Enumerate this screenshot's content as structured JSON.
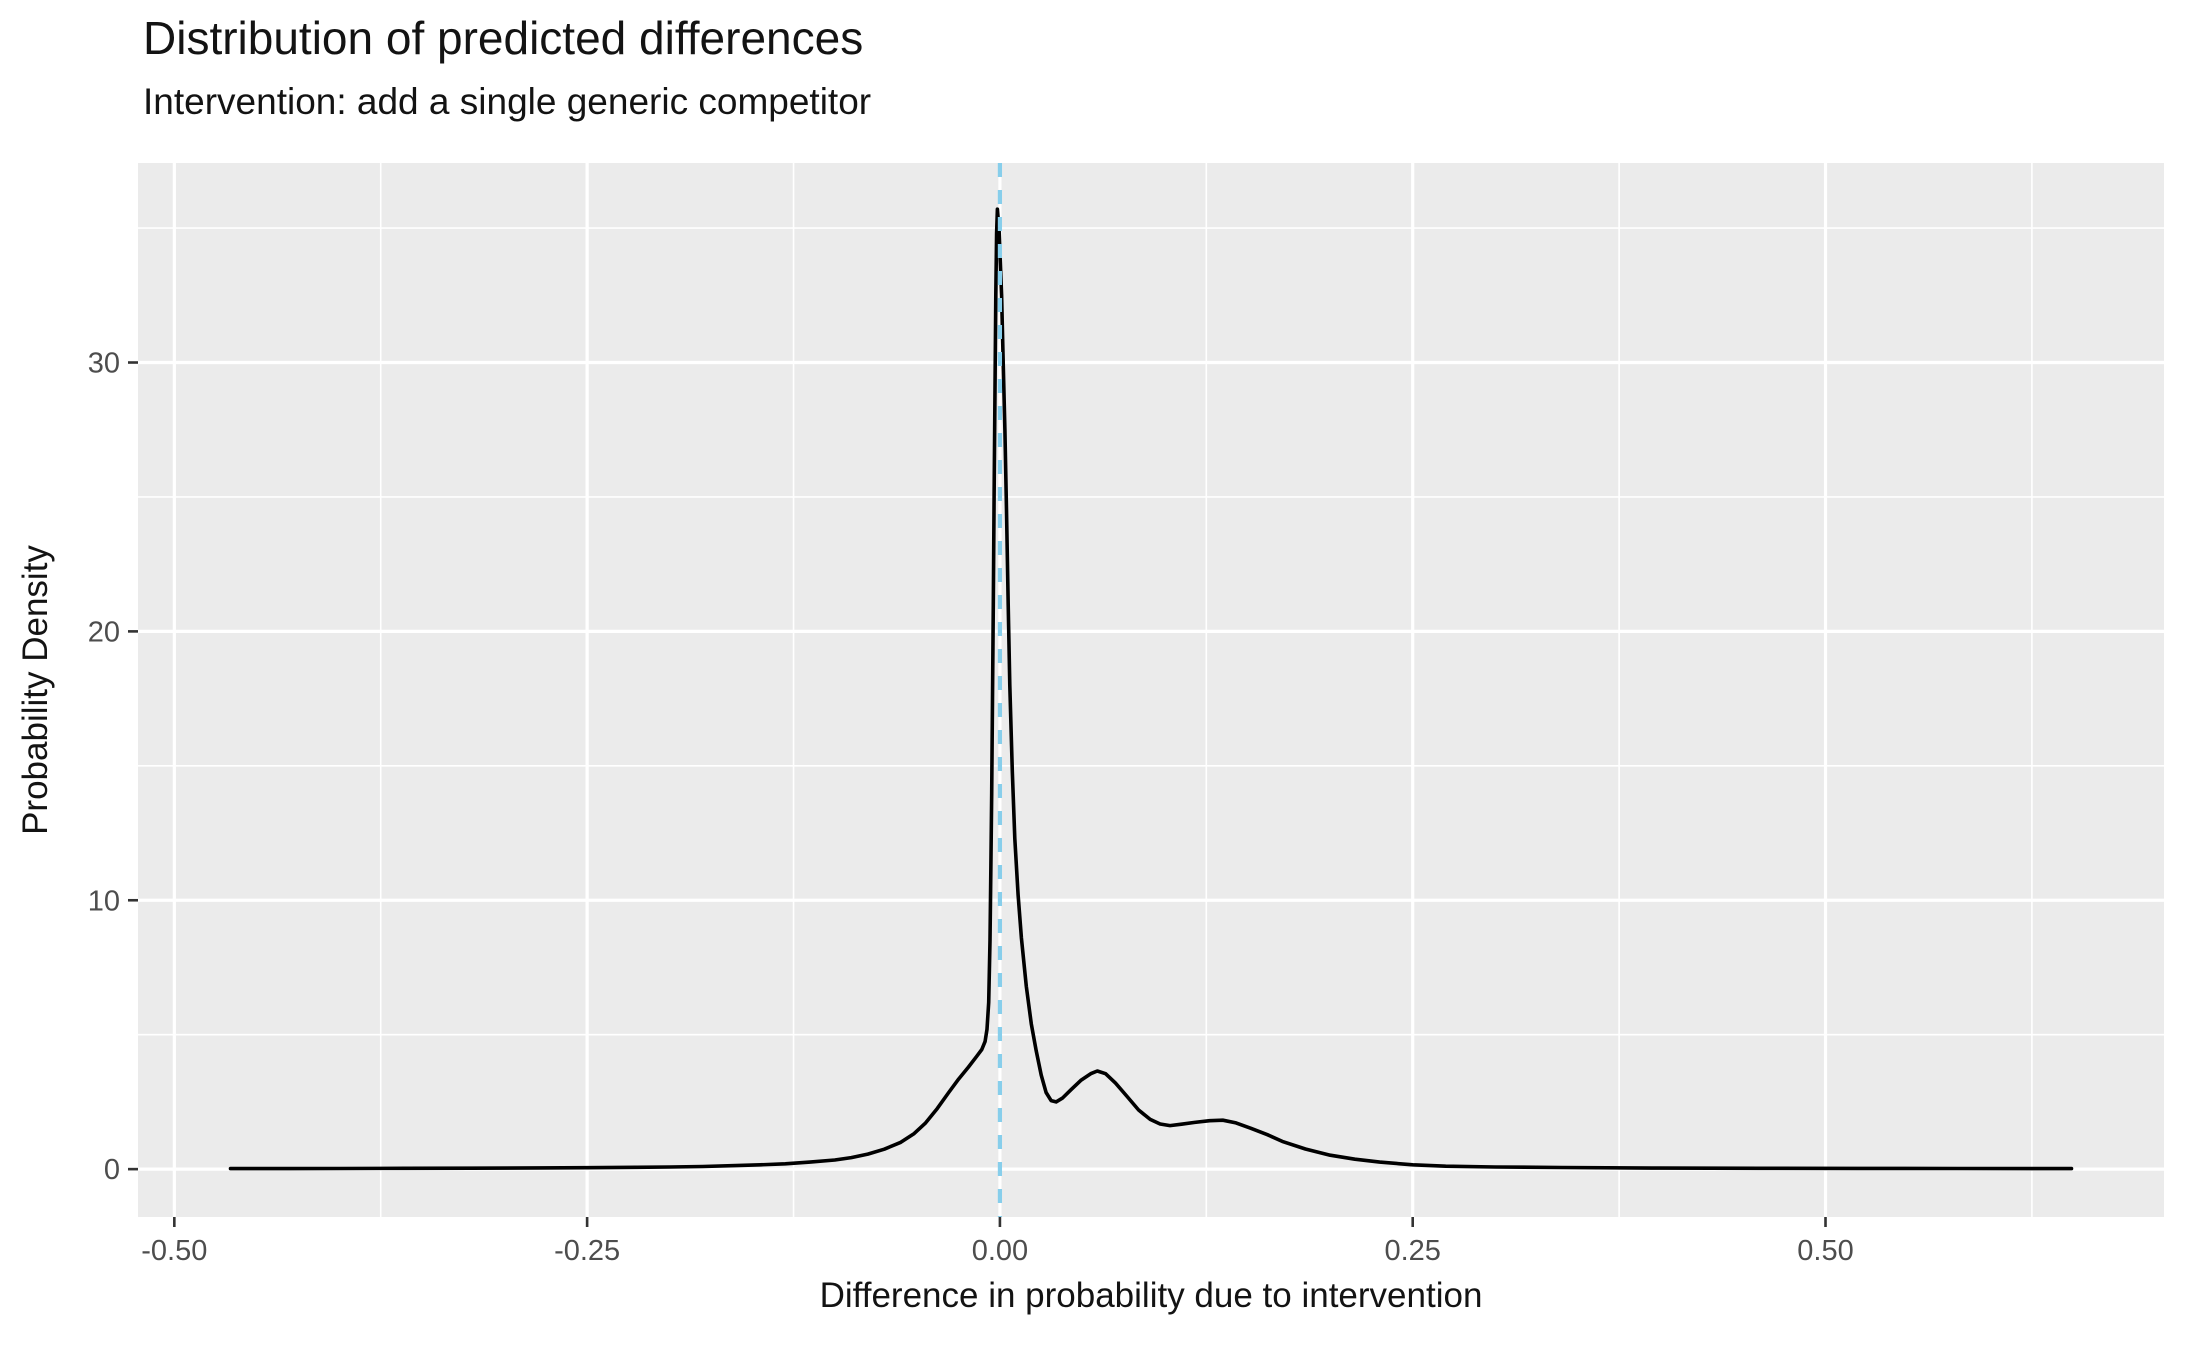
{
  "chart_data": {
    "type": "line",
    "variant": "density-curve",
    "title": "Distribution of predicted differences",
    "subtitle": "Intervention: add a single generic competitor",
    "xlabel": "Difference in probability due to intervention",
    "ylabel": "Probability Density",
    "xlim": [
      -0.522,
      0.705
    ],
    "ylim": [
      -1.78,
      37.42
    ],
    "grid": "on",
    "legend": "none",
    "x_ticks": {
      "values": [
        -0.5,
        -0.25,
        0.0,
        0.25,
        0.5
      ],
      "labels": [
        "-0.50",
        "-0.25",
        "0.00",
        "0.25",
        "0.50"
      ]
    },
    "y_ticks": {
      "values": [
        0,
        10,
        20,
        30
      ],
      "labels": [
        "0",
        "10",
        "20",
        "30"
      ]
    },
    "x_minor": [
      -0.375,
      -0.125,
      0.125,
      0.375,
      0.625
    ],
    "y_minor": [
      5,
      15,
      25,
      35
    ],
    "reference_line": {
      "x": 0.0,
      "style": "dashed",
      "color": "#87CEEB"
    },
    "series": [
      {
        "name": "predicted-difference-density",
        "color": "#000000",
        "points": [
          [
            -0.466,
            0.02
          ],
          [
            -0.43,
            0.02
          ],
          [
            -0.4,
            0.025
          ],
          [
            -0.36,
            0.03
          ],
          [
            -0.32,
            0.035
          ],
          [
            -0.28,
            0.045
          ],
          [
            -0.25,
            0.055
          ],
          [
            -0.22,
            0.07
          ],
          [
            -0.2,
            0.08
          ],
          [
            -0.18,
            0.1
          ],
          [
            -0.16,
            0.13
          ],
          [
            -0.145,
            0.16
          ],
          [
            -0.13,
            0.2
          ],
          [
            -0.115,
            0.26
          ],
          [
            -0.1,
            0.34
          ],
          [
            -0.09,
            0.43
          ],
          [
            -0.08,
            0.56
          ],
          [
            -0.07,
            0.74
          ],
          [
            -0.06,
            1.0
          ],
          [
            -0.052,
            1.32
          ],
          [
            -0.045,
            1.72
          ],
          [
            -0.038,
            2.25
          ],
          [
            -0.031,
            2.85
          ],
          [
            -0.025,
            3.35
          ],
          [
            -0.019,
            3.8
          ],
          [
            -0.014,
            4.2
          ],
          [
            -0.011,
            4.45
          ],
          [
            -0.009,
            4.75
          ],
          [
            -0.0078,
            5.2
          ],
          [
            -0.0068,
            6.2
          ],
          [
            -0.006,
            8.5
          ],
          [
            -0.0055,
            11
          ],
          [
            -0.005,
            14
          ],
          [
            -0.0045,
            17.5
          ],
          [
            -0.004,
            21
          ],
          [
            -0.0035,
            25
          ],
          [
            -0.003,
            29
          ],
          [
            -0.0025,
            32.5
          ],
          [
            -0.002,
            34.8
          ],
          [
            -0.0015,
            35.7
          ],
          [
            -0.0005,
            34.9
          ],
          [
            0.001,
            32.5
          ],
          [
            0.002,
            30
          ],
          [
            0.003,
            27.5
          ],
          [
            0.004,
            24.5
          ],
          [
            0.005,
            21
          ],
          [
            0.006,
            18
          ],
          [
            0.0075,
            14.8
          ],
          [
            0.009,
            12.3
          ],
          [
            0.011,
            10.2
          ],
          [
            0.013,
            8.6
          ],
          [
            0.016,
            6.8
          ],
          [
            0.019,
            5.4
          ],
          [
            0.022,
            4.4
          ],
          [
            0.025,
            3.5
          ],
          [
            0.028,
            2.85
          ],
          [
            0.031,
            2.55
          ],
          [
            0.034,
            2.5
          ],
          [
            0.038,
            2.65
          ],
          [
            0.043,
            2.95
          ],
          [
            0.049,
            3.3
          ],
          [
            0.055,
            3.55
          ],
          [
            0.059,
            3.65
          ],
          [
            0.064,
            3.55
          ],
          [
            0.07,
            3.2
          ],
          [
            0.077,
            2.7
          ],
          [
            0.084,
            2.2
          ],
          [
            0.091,
            1.85
          ],
          [
            0.097,
            1.68
          ],
          [
            0.103,
            1.62
          ],
          [
            0.11,
            1.67
          ],
          [
            0.118,
            1.74
          ],
          [
            0.127,
            1.8
          ],
          [
            0.135,
            1.82
          ],
          [
            0.143,
            1.72
          ],
          [
            0.152,
            1.52
          ],
          [
            0.162,
            1.28
          ],
          [
            0.171,
            1.03
          ],
          [
            0.185,
            0.75
          ],
          [
            0.2,
            0.52
          ],
          [
            0.215,
            0.37
          ],
          [
            0.23,
            0.26
          ],
          [
            0.25,
            0.16
          ],
          [
            0.27,
            0.11
          ],
          [
            0.3,
            0.08
          ],
          [
            0.34,
            0.06
          ],
          [
            0.4,
            0.04
          ],
          [
            0.46,
            0.032
          ],
          [
            0.52,
            0.027
          ],
          [
            0.58,
            0.022
          ],
          [
            0.649,
            0.02
          ]
        ]
      }
    ],
    "colors": {
      "panel_bg": "#EBEBEB",
      "grid": "#FFFFFF",
      "curve": "#000000",
      "reference_line": "#87CEEB",
      "tick_label": "#4D4D4D",
      "tick_mark": "#333333"
    }
  }
}
